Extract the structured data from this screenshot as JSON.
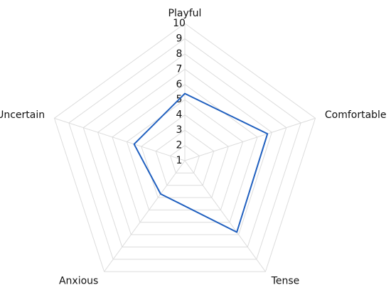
{
  "chart_data": {
    "type": "radar",
    "categories": [
      "Playful",
      "Comfortable",
      "Tense",
      "Anxious",
      "Uncertain"
    ],
    "series": [
      {
        "color": "#1f5fbf",
        "values": [
          5.4,
          6.7,
          6.8,
          3.7,
          4.5
        ]
      }
    ],
    "rlim": [
      1,
      10
    ],
    "rticks": [
      1,
      2,
      3,
      4,
      5,
      6,
      7,
      8,
      9,
      10
    ],
    "grid": true
  }
}
